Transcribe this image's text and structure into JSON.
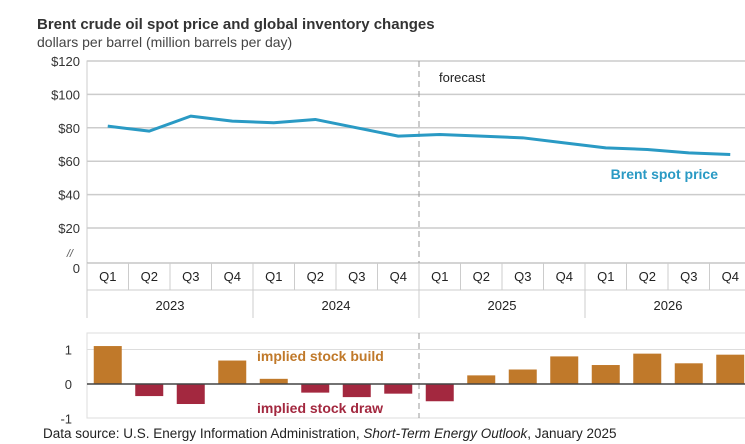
{
  "chart_data": [
    {
      "type": "line",
      "title": "Brent crude oil spot price and global inventory changes",
      "subtitle": "dollars per barrel (million barrels per day)",
      "categories": [
        "Q1",
        "Q2",
        "Q3",
        "Q4",
        "Q1",
        "Q2",
        "Q3",
        "Q4",
        "Q1",
        "Q2",
        "Q3",
        "Q4",
        "Q1",
        "Q2",
        "Q3",
        "Q4"
      ],
      "years": [
        "2023",
        "2024",
        "2025",
        "2026"
      ],
      "yticks": [
        "$120",
        "$100",
        "$80",
        "$60",
        "$40",
        "$20",
        "0"
      ],
      "ylim": [
        0,
        120
      ],
      "axis_break_label": "//",
      "forecast_label": "forecast",
      "grid": true,
      "series": [
        {
          "name": "Brent spot price",
          "color": "#2a9ac4",
          "values": [
            81,
            78,
            87,
            84,
            83,
            85,
            80,
            75,
            76,
            75,
            74,
            71,
            68,
            67,
            65,
            64
          ]
        }
      ]
    },
    {
      "type": "bar",
      "categories": [
        "Q1",
        "Q2",
        "Q3",
        "Q4",
        "Q1",
        "Q2",
        "Q3",
        "Q4",
        "Q1",
        "Q2",
        "Q3",
        "Q4",
        "Q1",
        "Q2",
        "Q3",
        "Q4"
      ],
      "ylim": [
        -1,
        1.3
      ],
      "yticks": [
        "1",
        "0",
        "-1"
      ],
      "build_label": "implied stock  build",
      "draw_label": "implied stock draw",
      "build_color": "#c0792a",
      "draw_color": "#a3283f",
      "values": [
        1.1,
        -0.35,
        -0.58,
        0.68,
        0.15,
        -0.25,
        -0.38,
        -0.28,
        -0.5,
        0.25,
        0.42,
        0.8,
        0.55,
        0.88,
        0.6,
        0.85
      ]
    }
  ],
  "source": {
    "prefix": "Data source: U.S. Energy Information Administration, ",
    "publication": "Short-Term Energy Outlook",
    "suffix": ", January 2025"
  }
}
